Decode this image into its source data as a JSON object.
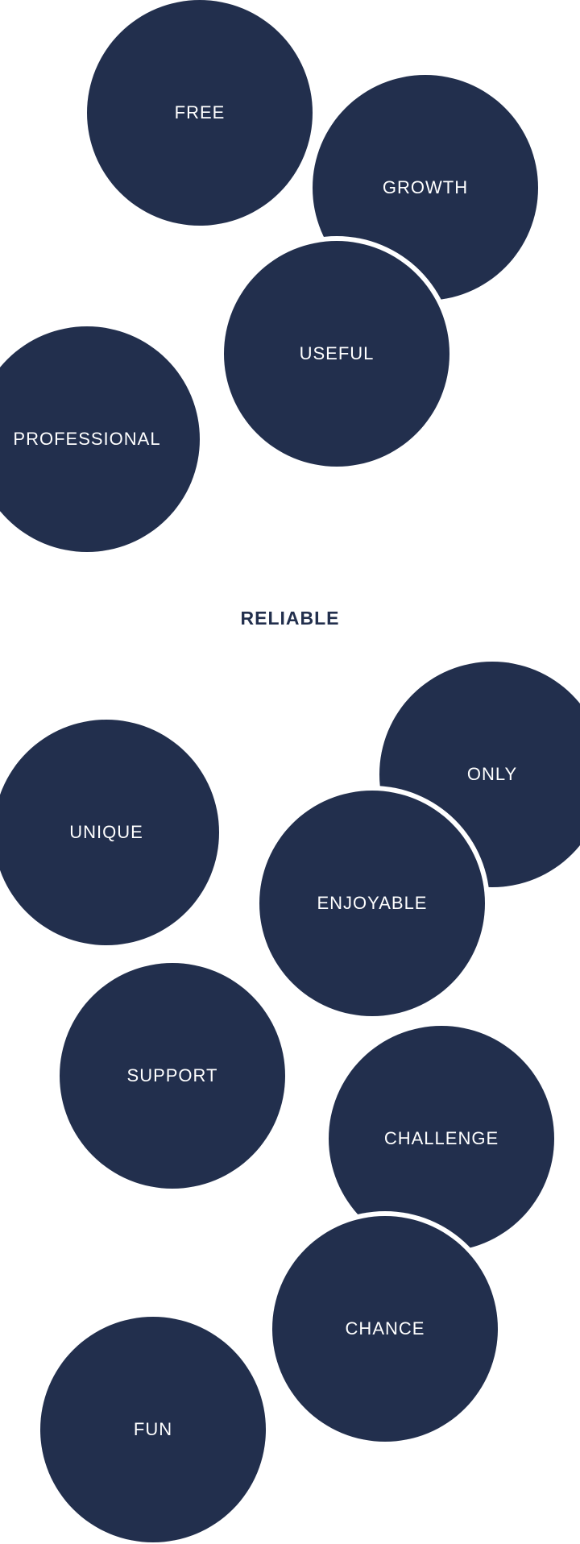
{
  "theme": {
    "bubble_color": "#222f4d",
    "label_color": "#ffffff",
    "background": "#ffffff"
  },
  "center_word": "RELIABLE",
  "bubbles": {
    "free": "FREE",
    "growth": "GROWTH",
    "useful": "USEFUL",
    "professional": "PROFESSIONAL",
    "only": "ONLY",
    "unique": "UNIQUE",
    "enjoyable": "ENJOYABLE",
    "support": "SUPPORT",
    "challenge": "CHALLENGE",
    "chance": "CHANCE",
    "fun": "FUN"
  }
}
